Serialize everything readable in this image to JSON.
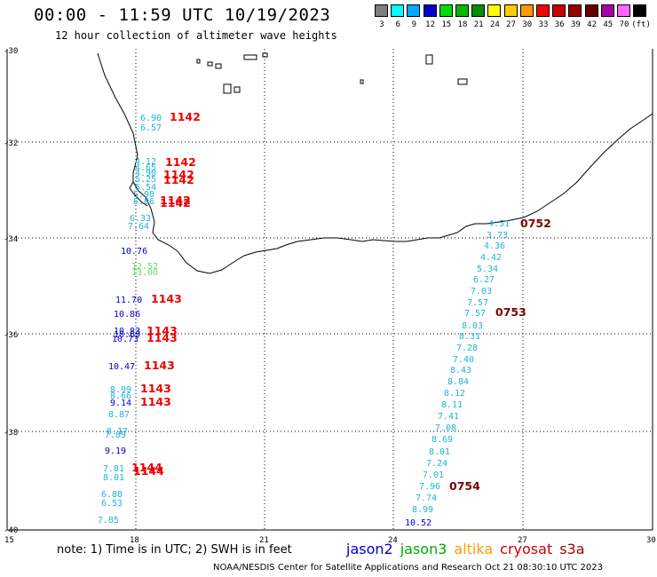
{
  "title": "00:00 - 11:59 UTC 10/19/2023",
  "subtitle": "12 hour collection of altimeter wave heights",
  "scale": {
    "labels": [
      "3",
      "6",
      "9",
      "12",
      "15",
      "18",
      "21",
      "24",
      "27",
      "30",
      "33",
      "36",
      "39",
      "42",
      "45",
      "70",
      "(ft)"
    ],
    "colors": [
      "#7f7f7f",
      "#00ffff",
      "#00aaff",
      "#0000cc",
      "#00dd00",
      "#00bb00",
      "#009000",
      "#ffff00",
      "#ffcc00",
      "#ff9900",
      "#ff0000",
      "#cc0000",
      "#990000",
      "#660000",
      "#aa00aa",
      "#ff66ff",
      "#000000"
    ]
  },
  "axes": {
    "lat_labels": [
      "-30",
      "-32",
      "-34",
      "-36",
      "-38",
      "-40"
    ],
    "lon_labels": [
      "15",
      "18",
      "21",
      "24",
      "27",
      "30"
    ]
  },
  "left_track": [
    {
      "text": "6.90",
      "c": "#1fb3d9"
    },
    {
      "text": "6.57",
      "c": "#1fb3d9"
    },
    {
      "text": "4.12",
      "c": "#1fb3d9"
    },
    {
      "text": "4.65",
      "c": "#1fb3d9"
    },
    {
      "text": "4.90",
      "c": "#1fb3d9"
    },
    {
      "text": "5.25",
      "c": "#1fb3d9"
    },
    {
      "text": "5.54",
      "c": "#1fb3d9"
    },
    {
      "text": "5.98",
      "c": "#1fb3d9"
    },
    {
      "text": "6.06",
      "c": "#1fb3d9"
    },
    {
      "text": "6.33",
      "c": "#1fb3d9"
    },
    {
      "text": "7.64",
      "c": "#1fb3d9"
    },
    {
      "text": "10.76",
      "c": "#0000cc"
    },
    {
      "text": "12.52",
      "c": "#66dd66"
    },
    {
      "text": "13.00",
      "c": "#66dd66"
    },
    {
      "text": "11.70",
      "c": "#0000cc"
    },
    {
      "text": "10.86",
      "c": "#0000cc"
    },
    {
      "text": "10.83",
      "c": "#0000cc"
    },
    {
      "text": "10.69",
      "c": "#0000cc"
    },
    {
      "text": "10.73",
      "c": "#0000cc"
    },
    {
      "text": "10.47",
      "c": "#0000cc"
    },
    {
      "text": "8.99",
      "c": "#1fb3d9"
    },
    {
      "text": "8.66",
      "c": "#1fb3d9"
    },
    {
      "text": "9.14",
      "c": "#0000cc"
    },
    {
      "text": "8.87",
      "c": "#1fb3d9"
    },
    {
      "text": "8.17",
      "c": "#1fb3d9"
    },
    {
      "text": "7.89",
      "c": "#1fb3d9"
    },
    {
      "text": "9.19",
      "c": "#0000cc"
    },
    {
      "text": "7.81",
      "c": "#1fb3d9"
    },
    {
      "text": "8.01",
      "c": "#1fb3d9"
    },
    {
      "text": "6.88",
      "c": "#1fb3d9"
    },
    {
      "text": "6.53",
      "c": "#1fb3d9"
    },
    {
      "text": "7.85",
      "c": "#1fb3d9"
    }
  ],
  "left_times": [
    "1142",
    "1142",
    "1142",
    "1142",
    "1142",
    "1142",
    "1143",
    "1143",
    "1143",
    "1143",
    "1143",
    "1143",
    "1144",
    "1144"
  ],
  "right_track": [
    {
      "text": "4.51",
      "c": "#1fb3d9"
    },
    {
      "text": "3.73",
      "c": "#1fb3d9"
    },
    {
      "text": "4.36",
      "c": "#1fb3d9"
    },
    {
      "text": "4.42",
      "c": "#1fb3d9"
    },
    {
      "text": "5.34",
      "c": "#1fb3d9"
    },
    {
      "text": "6.27",
      "c": "#1fb3d9"
    },
    {
      "text": "7.03",
      "c": "#1fb3d9"
    },
    {
      "text": "7.57",
      "c": "#1fb3d9"
    },
    {
      "text": "7.57",
      "c": "#1fb3d9"
    },
    {
      "text": "8.03",
      "c": "#1fb3d9"
    },
    {
      "text": "8.31",
      "c": "#1fb3d9"
    },
    {
      "text": "7.28",
      "c": "#1fb3d9"
    },
    {
      "text": "7.40",
      "c": "#1fb3d9"
    },
    {
      "text": "8.43",
      "c": "#1fb3d9"
    },
    {
      "text": "8.84",
      "c": "#1fb3d9"
    },
    {
      "text": "8.12",
      "c": "#1fb3d9"
    },
    {
      "text": "8.11",
      "c": "#1fb3d9"
    },
    {
      "text": "7.41",
      "c": "#1fb3d9"
    },
    {
      "text": "7.08",
      "c": "#1fb3d9"
    },
    {
      "text": "8.69",
      "c": "#1fb3d9"
    },
    {
      "text": "8.01",
      "c": "#1fb3d9"
    },
    {
      "text": "7.24",
      "c": "#1fb3d9"
    },
    {
      "text": "7.01",
      "c": "#1fb3d9"
    },
    {
      "text": "7.96",
      "c": "#1fb3d9"
    },
    {
      "text": "7.74",
      "c": "#1fb3d9"
    },
    {
      "text": "8.99",
      "c": "#1fb3d9"
    },
    {
      "text": "10.52",
      "c": "#0000cc"
    }
  ],
  "right_times": [
    "0752",
    "0753",
    "0754"
  ],
  "time_colors": {
    "left": "#ee0000",
    "right": "#7a0000"
  },
  "footer_note": "note: 1) Time is in UTC; 2) SWH is in feet",
  "satellites": [
    {
      "name": "jason2",
      "color": "#0000cc"
    },
    {
      "name": "jason3",
      "color": "#00aa00"
    },
    {
      "name": "altika",
      "color": "#ff9900"
    },
    {
      "name": "cryosat",
      "color": "#cc0000"
    },
    {
      "name": "s3a",
      "color": "#990000"
    }
  ],
  "credit": "NOAA/NESDIS Center for Satellite Applications and Research     Oct 21 08:30:10 UTC 2023"
}
